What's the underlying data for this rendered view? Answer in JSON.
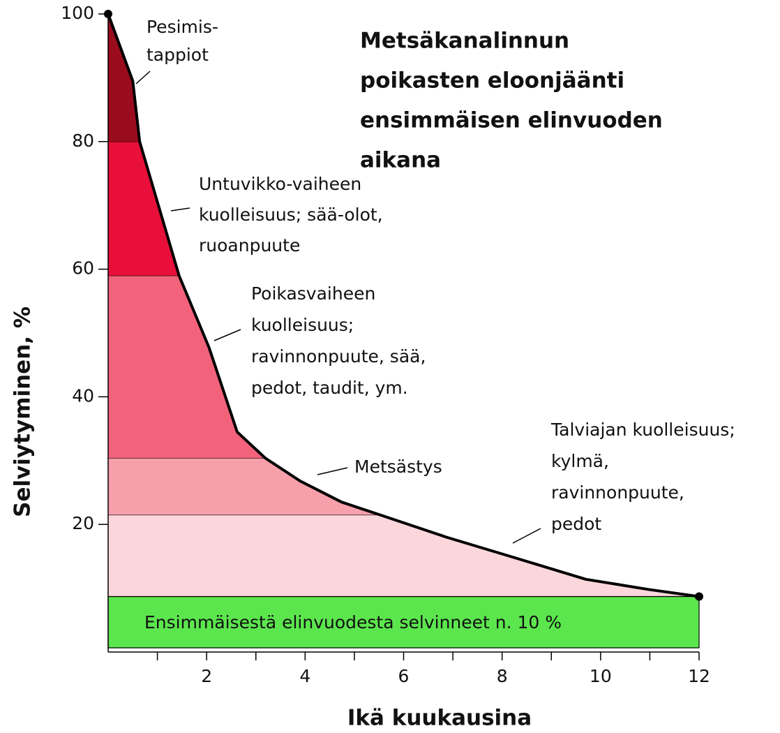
{
  "chart_data": {
    "type": "survival-area",
    "title_lines": [
      "Metsäkanalinnun",
      "poikasten eloonjäänti",
      "ensimmäisen elinvuoden",
      "aikana"
    ],
    "xlabel": "Ikä kuukausina",
    "ylabel": "Selviytyminen, %",
    "xlim": [
      0,
      12
    ],
    "ylim": [
      0,
      100
    ],
    "xticks": [
      2,
      4,
      6,
      8,
      10,
      12
    ],
    "xminor_ticks": [
      1,
      3,
      5,
      7,
      9,
      11
    ],
    "yticks": [
      20,
      40,
      60,
      80,
      100
    ],
    "curve": {
      "color": "#000000",
      "x": [
        0,
        0.5,
        0.64,
        1.44,
        2.05,
        2.62,
        3.19,
        3.9,
        4.74,
        5.52,
        6.87,
        8.29,
        9.7,
        10.98,
        12
      ],
      "values": [
        100,
        89.5,
        80,
        59,
        47.7,
        34.5,
        30.4,
        26.8,
        23.5,
        21.5,
        18,
        14.7,
        11.4,
        9.8,
        8.7
      ]
    },
    "segments": [
      {
        "values": 8.7,
        "color": "#5ce64e",
        "label": "Ensimmäisestä elinvuodesta selvinneet n. 10 %"
      },
      {
        "values": 12.8,
        "color": "#fbd6da",
        "label_lines": [
          "Talviajan kuolleisuus;",
          "kylmä,",
          "ravinnonpuute,",
          "pedot"
        ]
      },
      {
        "values": 8.9,
        "color": "#f7a0ac",
        "label_lines": [
          "Metsästys"
        ]
      },
      {
        "values": 28.6,
        "color": "#f2627a",
        "label_lines": [
          "Poikasvaiheen",
          "kuolleisuus;",
          "ravinnonpuute, sää,",
          "pedot, taudit, ym."
        ]
      },
      {
        "values": 21,
        "color": "#e8103a",
        "label_lines": [
          "Untuvikko-vaiheen",
          "kuolleisuus; sää-olot,",
          "ruoanpuute"
        ]
      },
      {
        "values": 20,
        "color": "#9b0b1e",
        "label_lines": [
          "Pesimis-",
          "tappiot"
        ]
      }
    ]
  }
}
